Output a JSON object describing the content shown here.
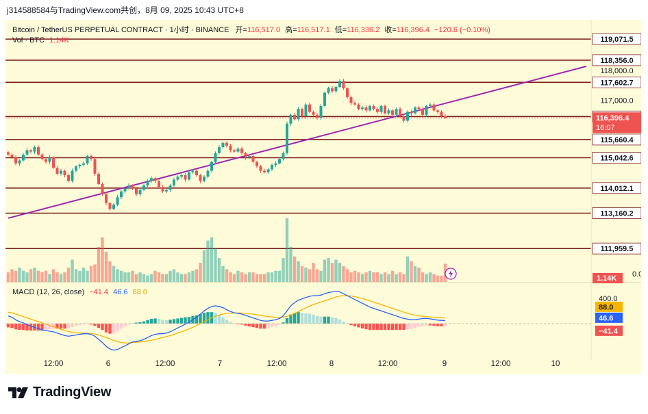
{
  "header": {
    "text": "j314588584与TradingView.com共创，8月 09, 2025 10:43 UTC+8"
  },
  "legend": {
    "symbol": "Bitcoin / TetherUS PERPETUAL CONTRACT · 1小时 · BINANCE",
    "open_label": "开=",
    "open": "116,517.0",
    "high_label": "高=",
    "high": "116,517.1",
    "low_label": "低=",
    "low": "116,336.2",
    "close_label": "收=",
    "close": "116,396.4",
    "change": "−120.6 (−0.10%)",
    "vol_label": "Vol · BTC",
    "vol_value": "1.14K"
  },
  "macd_legend": {
    "label": "MACD (12, 26, close)",
    "hist": "−41.4",
    "macd": "46.6",
    "signal": "88.0"
  },
  "colors": {
    "up": "#26a69a",
    "down": "#ef5350",
    "level": "#7b1e1e",
    "trend": "#9c27b0",
    "macd": "#2962ff",
    "signal": "#f7b500",
    "bg": "#fefbd8"
  },
  "footer": {
    "brand": "TradingView"
  },
  "chart_data": [
    {
      "type": "candlestick",
      "title": "Bitcoin / TetherUS PERPETUAL CONTRACT · 1小时 · BINANCE",
      "x_ticks": [
        "12:00",
        "6",
        "12:00",
        "7",
        "12:00",
        "8",
        "12:00",
        "9",
        "12:00",
        "10"
      ],
      "y_ticks": [
        "118,000.0",
        "117,000.0"
      ],
      "ylim": [
        112800,
        119400
      ],
      "levels": [
        "119,071.5",
        "118,356.0",
        "117,602.7",
        "116,442.3",
        "115,660.4",
        "115,042.6",
        "114,012.1",
        "113,160.2",
        "111,959.5"
      ],
      "level_values": [
        119071.5,
        118356.0,
        117602.7,
        116442.3,
        115660.4,
        115042.6,
        114012.1,
        113160.2,
        111959.5
      ],
      "current_price": {
        "label": "116,396.4",
        "countdown": "16:07",
        "value": 116396.4
      },
      "trendline": {
        "from": {
          "bar": 0,
          "value": 112990
        },
        "to": {
          "bar": 108,
          "value": 116620
        }
      },
      "candles_close": [
        115150,
        115050,
        114850,
        114950,
        115150,
        115300,
        115250,
        115400,
        115150,
        115000,
        114900,
        115050,
        114700,
        114500,
        114600,
        114450,
        114250,
        114600,
        114750,
        114800,
        114850,
        115100,
        115000,
        114500,
        114150,
        113800,
        113500,
        113300,
        113450,
        113700,
        113900,
        114000,
        114100,
        114000,
        113800,
        113950,
        114100,
        114250,
        114350,
        114250,
        114050,
        113900,
        113950,
        114100,
        114300,
        114400,
        114450,
        114300,
        114550,
        114600,
        114450,
        114250,
        114400,
        114600,
        114900,
        115200,
        115400,
        115550,
        115450,
        115300,
        115250,
        115350,
        115200,
        115050,
        115100,
        114900,
        114750,
        114600,
        114550,
        114650,
        114800,
        114850,
        115000,
        115200,
        116200,
        116500,
        116350,
        116700,
        116450,
        116850,
        116600,
        116500,
        116400,
        116800,
        117250,
        117400,
        117300,
        117450,
        117650,
        117400,
        117100,
        116900,
        116850,
        116700,
        116750,
        116650,
        116800,
        116700,
        116600,
        116800,
        116550,
        116650,
        116500,
        116700,
        116450,
        116300,
        116600,
        116550,
        116750,
        116700,
        116500,
        116800,
        116850,
        116650,
        116600,
        116450,
        116396.4
      ],
      "volume_label": "1.14K",
      "volume_tick": "0.0",
      "volume": [
        0.6,
        0.8,
        0.7,
        0.9,
        0.7,
        0.6,
        0.8,
        0.9,
        0.7,
        0.6,
        0.7,
        0.5,
        0.8,
        0.6,
        0.5,
        0.6,
        0.9,
        1.4,
        0.8,
        0.7,
        0.9,
        0.7,
        1.0,
        1.1,
        2.2,
        2.8,
        1.9,
        1.3,
        1.0,
        0.8,
        0.7,
        0.6,
        0.6,
        0.7,
        0.5,
        0.6,
        0.5,
        0.4,
        0.5,
        0.7,
        0.6,
        0.5,
        0.5,
        0.7,
        0.8,
        0.6,
        0.5,
        0.5,
        0.6,
        0.7,
        0.8,
        1.2,
        2.0,
        2.6,
        2.8,
        2.1,
        1.5,
        1.0,
        0.8,
        0.6,
        0.5,
        0.7,
        0.6,
        0.5,
        0.6,
        0.6,
        0.5,
        0.5,
        0.5,
        0.6,
        0.6,
        0.7,
        0.7,
        1.5,
        4.0,
        2.2,
        1.6,
        1.3,
        1.0,
        0.9,
        0.8,
        1.2,
        0.8,
        0.7,
        1.4,
        1.5,
        1.2,
        1.4,
        1.2,
        1.0,
        0.8,
        0.6,
        0.7,
        0.6,
        0.5,
        0.6,
        0.7,
        0.6,
        0.6,
        0.5,
        0.6,
        0.5,
        0.7,
        0.5,
        0.6,
        0.5,
        1.6,
        1.3,
        1.0,
        0.9,
        0.6,
        0.5,
        0.6,
        0.5,
        0.4,
        0.4,
        1.14
      ]
    },
    {
      "type": "bar",
      "title": "MACD (12, 26, close)",
      "y_ticks": [
        "400.0"
      ],
      "ylim": [
        -520,
        560
      ],
      "labels": {
        "signal": "88.0",
        "macd": "46.6",
        "hist": "−41.4"
      },
      "macd_line": [
        120,
        100,
        60,
        30,
        10,
        -20,
        -40,
        -60,
        -80,
        -100,
        -110,
        -120,
        -130,
        -150,
        -170,
        -190,
        -200,
        -190,
        -180,
        -170,
        -160,
        -160,
        -170,
        -200,
        -250,
        -300,
        -360,
        -400,
        -420,
        -410,
        -380,
        -350,
        -320,
        -290,
        -280,
        -270,
        -250,
        -220,
        -190,
        -170,
        -160,
        -160,
        -150,
        -130,
        -100,
        -70,
        -40,
        -10,
        20,
        60,
        100,
        150,
        200,
        240,
        270,
        280,
        270,
        250,
        220,
        190,
        170,
        160,
        150,
        130,
        110,
        90,
        70,
        50,
        40,
        40,
        50,
        60,
        80,
        120,
        200,
        280,
        330,
        370,
        390,
        410,
        430,
        440,
        440,
        450,
        470,
        490,
        500,
        510,
        500,
        470,
        440,
        410,
        380,
        350,
        320,
        290,
        260,
        240,
        220,
        200,
        180,
        160,
        140,
        120,
        100,
        80,
        70,
        60,
        60,
        70,
        80,
        80,
        75,
        65,
        55,
        50,
        46.6
      ],
      "signal_line": [
        180,
        170,
        150,
        130,
        110,
        90,
        70,
        50,
        30,
        10,
        -10,
        -30,
        -50,
        -70,
        -90,
        -110,
        -125,
        -135,
        -145,
        -150,
        -150,
        -152,
        -155,
        -165,
        -180,
        -200,
        -220,
        -240,
        -265,
        -285,
        -300,
        -305,
        -305,
        -300,
        -295,
        -290,
        -285,
        -275,
        -265,
        -250,
        -235,
        -220,
        -205,
        -190,
        -170,
        -150,
        -130,
        -110,
        -85,
        -60,
        -30,
        0,
        30,
        60,
        90,
        115,
        135,
        150,
        160,
        165,
        168,
        168,
        166,
        162,
        156,
        148,
        140,
        130,
        120,
        112,
        105,
        100,
        98,
        102,
        115,
        135,
        160,
        190,
        220,
        250,
        275,
        300,
        320,
        340,
        360,
        380,
        400,
        420,
        435,
        440,
        440,
        435,
        425,
        410,
        395,
        378,
        360,
        340,
        320,
        300,
        280,
        260,
        240,
        220,
        200,
        180,
        160,
        145,
        132,
        122,
        115,
        110,
        105,
        100,
        96,
        92,
        88.0
      ]
    }
  ]
}
